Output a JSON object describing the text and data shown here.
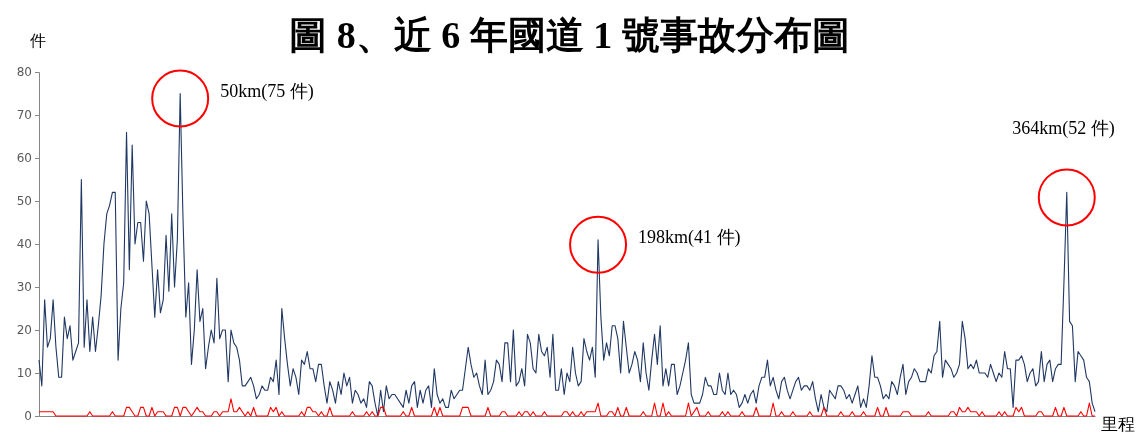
{
  "chart_data": {
    "type": "line",
    "title": "圖 8、近 6 年國道 1 號事故分布圖",
    "ylabel": "件",
    "xlabel": "里程",
    "categories": [
      null,
      null,
      null,
      null,
      null,
      null,
      null,
      null,
      null,
      null,
      null,
      null,
      null,
      null,
      null,
      null,
      null,
      null,
      null,
      null,
      null,
      null,
      null,
      null,
      null,
      null,
      null,
      null,
      null,
      null,
      null,
      null,
      null,
      null,
      null,
      null,
      null,
      null,
      null,
      null,
      null,
      null,
      null,
      null,
      null,
      null,
      null,
      null,
      null,
      null,
      null,
      null,
      null,
      null,
      null,
      null,
      null,
      null,
      null,
      null,
      null,
      null,
      null,
      null,
      null,
      null,
      null,
      null,
      null,
      null,
      null,
      null,
      null,
      null,
      null,
      null,
      null,
      null,
      null,
      null,
      null,
      null,
      null,
      null,
      null,
      null,
      null,
      null,
      null,
      null,
      null,
      null,
      null,
      null,
      null,
      null,
      null,
      null,
      null,
      null,
      null,
      null,
      null,
      null,
      null,
      null,
      null,
      null,
      null,
      null,
      null,
      null,
      null,
      null,
      null,
      null,
      null,
      null,
      null,
      null,
      null,
      null,
      null,
      null,
      null,
      null,
      null,
      null,
      null,
      null,
      null,
      null,
      null,
      null,
      null,
      null,
      null,
      null,
      null,
      null,
      null,
      null,
      null,
      null,
      null,
      null,
      null,
      null,
      null,
      null,
      null,
      null,
      null,
      null,
      null,
      null,
      null,
      null,
      null,
      null,
      null,
      null,
      null,
      null,
      null,
      null,
      null,
      null,
      null,
      null,
      null,
      null,
      null,
      null,
      null,
      null,
      null,
      null,
      null,
      null,
      null,
      null,
      null,
      null,
      null,
      null,
      null,
      null,
      null,
      null,
      null,
      null,
      null,
      null,
      null,
      null,
      null,
      null,
      null,
      null,
      null,
      null,
      null,
      null,
      null,
      null,
      null,
      null,
      null,
      null,
      null,
      null,
      null,
      null,
      null,
      null,
      null,
      null,
      null,
      null,
      null,
      null,
      null,
      null,
      null,
      null,
      null,
      null,
      null,
      null,
      null,
      null,
      null,
      null,
      null,
      null,
      null,
      null,
      null,
      null,
      null,
      null,
      null,
      null,
      null,
      null,
      null,
      null,
      null,
      null,
      null,
      null,
      null,
      null,
      null,
      null,
      null,
      null,
      null,
      null,
      null,
      null,
      null,
      null,
      null,
      null,
      null,
      null,
      null,
      null,
      null,
      null,
      null,
      null,
      null,
      null,
      null,
      null,
      null,
      null,
      null,
      null,
      null,
      null,
      null,
      null,
      null,
      null,
      null,
      null,
      null,
      null,
      null,
      null,
      null,
      null,
      null,
      null,
      null,
      null,
      null,
      null,
      null,
      null,
      null,
      null,
      null,
      null,
      null,
      null,
      null,
      null,
      null,
      null,
      null,
      null,
      null,
      null,
      null,
      null,
      null,
      null,
      null,
      null,
      null,
      null,
      null,
      null,
      null,
      null,
      null,
      null,
      null,
      null,
      null,
      null,
      null,
      null,
      null,
      null,
      null,
      null,
      null,
      null,
      null,
      null,
      null,
      null,
      null,
      null,
      null,
      null,
      null,
      null,
      null,
      null,
      null,
      null,
      null,
      null,
      null,
      null,
      null,
      null,
      null,
      null,
      null,
      null,
      null,
      null,
      null,
      null,
      null,
      null,
      null
    ],
    "ylim": [
      0,
      80
    ],
    "yticks": [
      0,
      10,
      20,
      30,
      40,
      50,
      60,
      70,
      80
    ],
    "tick_labels": "y",
    "annotations": [
      "50km(75 件)",
      "198km(41 件)",
      "364km(52 件)"
    ],
    "series": [
      {
        "color": "#203864",
        "values": [
          13,
          7,
          27,
          16,
          18,
          27,
          16,
          9,
          9,
          23,
          18,
          21,
          13,
          15,
          17,
          55,
          16,
          27,
          15,
          23,
          15,
          21,
          28,
          40,
          47,
          49,
          52,
          52,
          13,
          25,
          31,
          66,
          34,
          63,
          40,
          45,
          45,
          36,
          50,
          47,
          35,
          23,
          34,
          24,
          27,
          42,
          29,
          47,
          30,
          41,
          75,
          46,
          23,
          31,
          12,
          20,
          34,
          22,
          25,
          11,
          16,
          20,
          17,
          32,
          18,
          20,
          20,
          8,
          20,
          17,
          16,
          13,
          7,
          7,
          8,
          9,
          7,
          4,
          5,
          7,
          6,
          6,
          9,
          8,
          13,
          5,
          25,
          18,
          12,
          7,
          11,
          9,
          5,
          13,
          12,
          15,
          11,
          11,
          8,
          12,
          12,
          7,
          3,
          8,
          6,
          3,
          8,
          5,
          10,
          7,
          9,
          3,
          6,
          5,
          3,
          4,
          2,
          8,
          7,
          3,
          0,
          6,
          1,
          7,
          4,
          5,
          5,
          4,
          3,
          2,
          6,
          3,
          7,
          8,
          2,
          6,
          3,
          6,
          7,
          2,
          11,
          5,
          3,
          4,
          2,
          2,
          6,
          4,
          5,
          6,
          6,
          11,
          16,
          12,
          9,
          10,
          7,
          5,
          13,
          5,
          6,
          8,
          13,
          12,
          8,
          17,
          17,
          8,
          20,
          7,
          8,
          11,
          7,
          19,
          17,
          11,
          10,
          19,
          15,
          14,
          16,
          9,
          19,
          6,
          6,
          11,
          5,
          10,
          8,
          16,
          10,
          7,
          8,
          18,
          15,
          13,
          16,
          9,
          41,
          23,
          13,
          17,
          14,
          21,
          21,
          18,
          10,
          22,
          16,
          10,
          12,
          15,
          13,
          8,
          17,
          10,
          6,
          13,
          19,
          12,
          21,
          7,
          11,
          7,
          12,
          12,
          5,
          7,
          10,
          13,
          17,
          5,
          3,
          3,
          3,
          5,
          9,
          7,
          7,
          5,
          5,
          10,
          6,
          5,
          10,
          5,
          6,
          5,
          2,
          3,
          5,
          3,
          5,
          6,
          3,
          7,
          9,
          9,
          13,
          7,
          9,
          6,
          4,
          8,
          9,
          6,
          4,
          6,
          8,
          9,
          6,
          7,
          7,
          6,
          8,
          4,
          1,
          5,
          2,
          1,
          6,
          5,
          4,
          7,
          7,
          6,
          4,
          5,
          3,
          5,
          7,
          2,
          4,
          2,
          7,
          14,
          9,
          9,
          7,
          4,
          5,
          4,
          8,
          7,
          5,
          9,
          12,
          5,
          8,
          9,
          11,
          10,
          8,
          8,
          8,
          11,
          10,
          14,
          15,
          22,
          9,
          13,
          12,
          11,
          9,
          10,
          12,
          22,
          18,
          11,
          12,
          11,
          13,
          10,
          10,
          10,
          9,
          12,
          10,
          8,
          10,
          9,
          15,
          11,
          11,
          2,
          13,
          13,
          14,
          12,
          8,
          10,
          11,
          7,
          8,
          15,
          8,
          12,
          13,
          8,
          11,
          12,
          12,
          31,
          52,
          22,
          21,
          8,
          15,
          14,
          13,
          9,
          8,
          3,
          1
        ]
      },
      {
        "color": "#ff0000",
        "values": [
          1,
          1,
          1,
          1,
          1,
          1,
          0,
          0,
          0,
          0,
          0,
          0,
          0,
          0,
          0,
          0,
          0,
          0,
          1,
          0,
          0,
          0,
          0,
          0,
          0,
          0,
          1,
          0,
          0,
          0,
          0,
          2,
          2,
          1,
          0,
          0,
          2,
          2,
          0,
          0,
          2,
          0,
          1,
          1,
          1,
          0,
          0,
          0,
          2,
          2,
          0,
          2,
          2,
          1,
          0,
          1,
          2,
          1,
          1,
          0,
          0,
          0,
          1,
          1,
          0,
          1,
          1,
          1,
          4,
          1,
          1,
          2,
          1,
          0,
          1,
          0,
          2,
          0,
          0,
          0,
          0,
          0,
          2,
          1,
          2,
          0,
          1,
          0,
          0,
          0,
          0,
          0,
          0,
          1,
          0,
          2,
          2,
          1,
          1,
          0,
          1,
          0,
          0,
          2,
          0,
          0,
          0,
          0,
          0,
          0,
          0,
          1,
          0,
          0,
          0,
          0,
          1,
          0,
          1,
          0,
          0,
          2,
          2,
          0,
          0,
          0,
          0,
          0,
          0,
          1,
          0,
          0,
          2,
          0,
          0,
          0,
          0,
          0,
          0,
          0,
          2,
          0,
          2,
          0,
          0,
          0,
          0,
          0,
          0,
          0,
          2,
          2,
          2,
          0,
          0,
          0,
          0,
          0,
          0,
          2,
          0,
          0,
          0,
          0,
          1,
          1,
          0,
          0,
          0,
          0,
          1,
          0,
          1,
          1,
          0,
          1,
          0,
          0,
          0,
          1,
          0,
          0,
          0,
          0,
          0,
          0,
          1,
          1,
          0,
          1,
          0,
          0,
          1,
          0,
          1,
          1,
          1,
          1,
          3,
          0,
          0,
          0,
          1,
          1,
          0,
          2,
          0,
          0,
          2,
          0,
          0,
          0,
          0,
          0,
          1,
          0,
          0,
          0,
          3,
          0,
          0,
          3,
          0,
          1,
          0,
          0,
          0,
          0,
          0,
          0,
          3,
          0,
          1,
          2,
          0,
          0,
          0,
          1,
          0,
          0,
          0,
          0,
          1,
          0,
          1,
          0,
          0,
          0,
          0,
          1,
          0,
          0,
          0,
          0,
          2,
          0,
          0,
          0,
          0,
          0,
          3,
          0,
          0,
          1,
          0,
          0,
          0,
          1,
          0,
          0,
          0,
          0,
          0,
          1,
          0,
          0,
          0,
          0,
          2,
          0,
          0,
          0,
          0,
          0,
          1,
          0,
          0,
          0,
          1,
          0,
          0,
          0,
          1,
          0,
          0,
          0,
          0,
          2,
          0,
          0,
          2,
          0,
          0,
          0,
          0,
          0,
          1,
          1,
          1,
          0,
          0,
          0,
          0,
          0,
          0,
          1,
          0,
          0,
          0,
          0,
          0,
          0,
          0,
          1,
          1,
          0,
          2,
          1,
          1,
          2,
          1,
          1,
          1,
          0,
          1,
          0,
          0,
          0,
          0,
          0,
          1,
          0,
          1,
          0,
          0,
          0,
          2,
          1,
          2,
          0,
          0,
          0,
          0,
          0,
          1,
          1,
          0,
          0,
          0,
          0,
          2,
          0,
          0,
          2,
          0,
          0,
          0,
          0,
          0,
          1,
          0,
          0,
          3,
          0,
          0
        ]
      }
    ]
  }
}
